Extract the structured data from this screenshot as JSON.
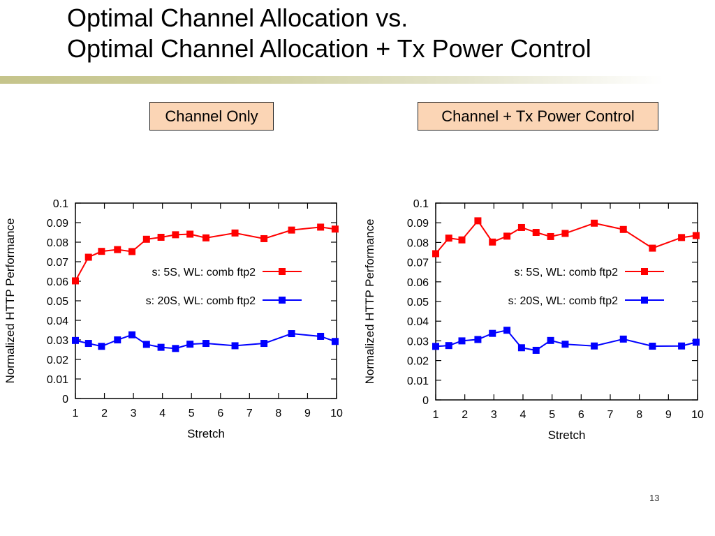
{
  "slide": {
    "title_line1": "Optimal Channel Allocation vs.",
    "title_line2": "Optimal Channel Allocation + Tx Power Control",
    "label_left": "Channel Only",
    "label_right": "Channel + Tx Power Control",
    "page_number": "13",
    "accent_color": "#c5c48b",
    "label_bg_color": "#fbd5b5"
  },
  "chart_data": [
    {
      "type": "line",
      "xlabel": "Stretch",
      "ylabel": "Normalized HTTP Performance",
      "xlim": [
        1,
        10
      ],
      "ylim": [
        0,
        0.1
      ],
      "xticks": [
        "1",
        "2",
        "3",
        "4",
        "5",
        "6",
        "7",
        "8",
        "9",
        "10"
      ],
      "yticks": [
        "0",
        "0.01",
        "0.02",
        "0.03",
        "0.04",
        "0.05",
        "0.06",
        "0.07",
        "0.08",
        "0.09",
        "0.1"
      ],
      "grid": false,
      "legend_position": "right-middle",
      "series": [
        {
          "name": "s: 5S, WL: comb ftp2",
          "color": "#ff0000",
          "marker": "square",
          "x": [
            1,
            1.45,
            1.9,
            2.45,
            2.95,
            3.45,
            3.95,
            4.45,
            4.95,
            5.5,
            6.5,
            7.5,
            8.45,
            9.45,
            9.95
          ],
          "y": [
            0.0602,
            0.0723,
            0.0753,
            0.0762,
            0.0752,
            0.0815,
            0.0825,
            0.0838,
            0.0841,
            0.0822,
            0.0847,
            0.0818,
            0.0862,
            0.0877,
            0.0867
          ]
        },
        {
          "name": "s: 20S, WL: comb ftp2",
          "color": "#0000ff",
          "marker": "square",
          "x": [
            1,
            1.45,
            1.9,
            2.45,
            2.95,
            3.45,
            3.95,
            4.45,
            4.95,
            5.5,
            6.5,
            7.5,
            8.45,
            9.45,
            9.95
          ],
          "y": [
            0.0297,
            0.0282,
            0.0267,
            0.03,
            0.0326,
            0.0277,
            0.0262,
            0.0256,
            0.0278,
            0.0282,
            0.027,
            0.0282,
            0.0332,
            0.0318,
            0.0292
          ]
        }
      ]
    },
    {
      "type": "line",
      "xlabel": "Stretch",
      "ylabel": "Normalized HTTP Performance",
      "xlim": [
        1,
        10
      ],
      "ylim": [
        0,
        0.1
      ],
      "xticks": [
        "1",
        "2",
        "3",
        "4",
        "5",
        "6",
        "7",
        "8",
        "9",
        "10"
      ],
      "yticks": [
        "0",
        "0.01",
        "0.02",
        "0.03",
        "0.04",
        "0.05",
        "0.06",
        "0.07",
        "0.08",
        "0.09",
        "0.1"
      ],
      "grid": false,
      "legend_position": "right-middle",
      "series": [
        {
          "name": "s: 5S, WL: comb ftp2",
          "color": "#ff0000",
          "marker": "square",
          "x": [
            1,
            1.45,
            1.9,
            2.45,
            2.95,
            3.45,
            3.95,
            4.45,
            4.95,
            5.45,
            6.45,
            7.45,
            8.45,
            9.45,
            9.95
          ],
          "y": [
            0.0743,
            0.0822,
            0.0813,
            0.091,
            0.0802,
            0.0832,
            0.0876,
            0.0851,
            0.083,
            0.0846,
            0.0898,
            0.0866,
            0.0771,
            0.0825,
            0.0835
          ]
        },
        {
          "name": "s: 20S, WL: comb ftp2",
          "color": "#0000ff",
          "marker": "square",
          "x": [
            1,
            1.45,
            1.9,
            2.45,
            2.95,
            3.45,
            3.95,
            4.45,
            4.95,
            5.45,
            6.45,
            7.45,
            8.45,
            9.45,
            9.95
          ],
          "y": [
            0.0272,
            0.0276,
            0.03,
            0.0307,
            0.0338,
            0.0354,
            0.0265,
            0.0252,
            0.0302,
            0.0283,
            0.0274,
            0.0309,
            0.0273,
            0.0274,
            0.0293
          ]
        }
      ]
    }
  ]
}
